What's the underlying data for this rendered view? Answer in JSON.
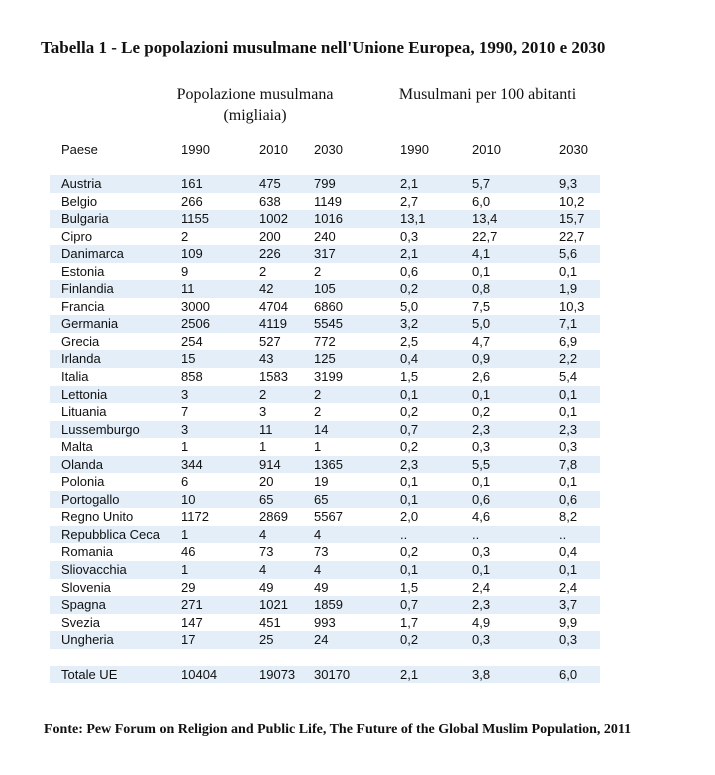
{
  "title": "Tabella 1 - Le popolazioni musulmane nell'Unione Europea, 1990, 2010 e 2030",
  "group_headers": {
    "pop_line1": "Popolazione musulmana",
    "pop_line2": "(migliaia)",
    "share": "Musulmani per 100 abitanti"
  },
  "columns": [
    "Paese",
    "1990",
    "2010",
    "2030",
    "1990",
    "2010",
    "2030"
  ],
  "rows": [
    [
      "Austria",
      "161",
      "475",
      "799",
      "2,1",
      "5,7",
      "9,3"
    ],
    [
      "Belgio",
      "266",
      "638",
      "1149",
      "2,7",
      "6,0",
      "10,2"
    ],
    [
      "Bulgaria",
      "1155",
      "1002",
      "1016",
      "13,1",
      "13,4",
      "15,7"
    ],
    [
      "Cipro",
      "2",
      "200",
      "240",
      "0,3",
      "22,7",
      "22,7"
    ],
    [
      "Danimarca",
      "109",
      "226",
      "317",
      "2,1",
      "4,1",
      "5,6"
    ],
    [
      "Estonia",
      "9",
      "2",
      "2",
      "0,6",
      "0,1",
      "0,1"
    ],
    [
      "Finlandia",
      "11",
      "42",
      "105",
      "0,2",
      "0,8",
      "1,9"
    ],
    [
      "Francia",
      "3000",
      "4704",
      "6860",
      "5,0",
      "7,5",
      "10,3"
    ],
    [
      "Germania",
      "2506",
      "4119",
      "5545",
      "3,2",
      "5,0",
      "7,1"
    ],
    [
      "Grecia",
      "254",
      "527",
      "772",
      "2,5",
      "4,7",
      "6,9"
    ],
    [
      "Irlanda",
      "15",
      "43",
      "125",
      "0,4",
      "0,9",
      "2,2"
    ],
    [
      "Italia",
      "858",
      "1583",
      "3199",
      "1,5",
      "2,6",
      "5,4"
    ],
    [
      "Lettonia",
      "3",
      "2",
      "2",
      "0,1",
      "0,1",
      "0,1"
    ],
    [
      "Lituania",
      "7",
      "3",
      "2",
      "0,2",
      "0,2",
      "0,1"
    ],
    [
      "Lussemburgo",
      "3",
      "11",
      "14",
      "0,7",
      "2,3",
      "2,3"
    ],
    [
      "Malta",
      "1",
      "1",
      "1",
      "0,2",
      "0,3",
      "0,3"
    ],
    [
      "Olanda",
      "344",
      "914",
      "1365",
      "2,3",
      "5,5",
      "7,8"
    ],
    [
      "Polonia",
      "6",
      "20",
      "19",
      "0,1",
      "0,1",
      "0,1"
    ],
    [
      "Portogallo",
      "10",
      "65",
      "65",
      "0,1",
      "0,6",
      "0,6"
    ],
    [
      "Regno Unito",
      "1172",
      "2869",
      "5567",
      "2,0",
      "4,6",
      "8,2"
    ],
    [
      "Repubblica Ceca",
      "1",
      "4",
      "4",
      "..",
      "..",
      ".."
    ],
    [
      "Romania",
      "46",
      "73",
      "73",
      "0,2",
      "0,3",
      "0,4"
    ],
    [
      "Sliovacchia",
      "1",
      "4",
      "4",
      "0,1",
      "0,1",
      "0,1"
    ],
    [
      "Slovenia",
      "29",
      "49",
      "49",
      "1,5",
      "2,4",
      "2,4"
    ],
    [
      "Spagna",
      "271",
      "1021",
      "1859",
      "0,7",
      "2,3",
      "3,7"
    ],
    [
      "Svezia",
      "147",
      "451",
      "993",
      "1,7",
      "4,9",
      "9,9"
    ],
    [
      "Ungheria",
      "17",
      "25",
      "24",
      "0,2",
      "0,3",
      "0,3"
    ]
  ],
  "total": [
    "Totale UE",
    "10404",
    "19073",
    "30170",
    "2,1",
    "3,8",
    "6,0"
  ],
  "source": "Fonte:  Pew Forum on Religion and Public Life, The Future of the Global Muslim Population, 2011",
  "colors": {
    "row_shade": "#e3eef8"
  }
}
